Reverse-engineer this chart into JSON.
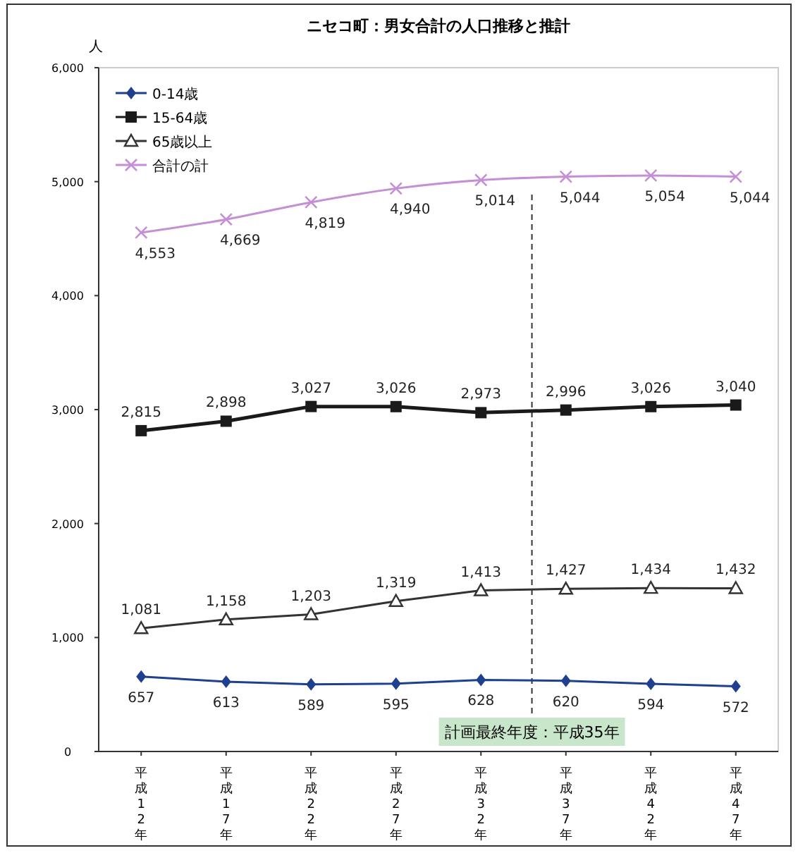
{
  "chart_data": {
    "type": "line",
    "title": "ニセコ町：男女合計の人口推移と推計",
    "ylabel": "人",
    "categories": [
      "平成12年",
      "平成17年",
      "平成22年",
      "平成27年",
      "平成32年",
      "平成37年",
      "平成42年",
      "平成47年"
    ],
    "ylim": [
      0,
      6000
    ],
    "yticks": [
      0,
      {
        "value": 1000,
        "label": "1,000"
      },
      {
        "value": 2000,
        "label": "2,000"
      },
      {
        "value": 3000,
        "label": "3,000"
      },
      {
        "value": 4000,
        "label": "4,000"
      },
      {
        "value": 5000,
        "label": "5,000"
      },
      {
        "value": 6000,
        "label": "6,000"
      }
    ],
    "series": [
      {
        "name": "0-14歳",
        "color": "#1f3f8f",
        "marker": "diamond",
        "values": [
          657,
          613,
          589,
          595,
          628,
          620,
          594,
          572
        ],
        "value_labels": [
          "657",
          "613",
          "589",
          "595",
          "628",
          "620",
          "594",
          "572"
        ]
      },
      {
        "name": "15-64歳",
        "color": "#1a1a1a",
        "marker": "square",
        "values": [
          2815,
          2898,
          3027,
          3026,
          2973,
          2996,
          3026,
          3040
        ],
        "value_labels": [
          "2,815",
          "2,898",
          "3,027",
          "3,026",
          "2,973",
          "2,996",
          "3,026",
          "3,040"
        ]
      },
      {
        "name": "65歳以上",
        "color": "#333333",
        "marker": "triangle",
        "values": [
          1081,
          1158,
          1203,
          1319,
          1413,
          1427,
          1434,
          1432
        ],
        "value_labels": [
          "1,081",
          "1,158",
          "1,203",
          "1,319",
          "1,413",
          "1,427",
          "1,434",
          "1,432"
        ]
      },
      {
        "name": "合計の計",
        "color": "#c58fd6",
        "marker": "cross",
        "values": [
          4553,
          4669,
          4819,
          4940,
          5014,
          5044,
          5054,
          5044
        ],
        "value_labels": [
          "4,553",
          "4,669",
          "4,819",
          "4,940",
          "5,014",
          "5,044",
          "5,054",
          "5,044"
        ]
      }
    ],
    "annotations": [
      "計画最終年度：平成35年"
    ],
    "grid": false,
    "legend": "top left"
  }
}
